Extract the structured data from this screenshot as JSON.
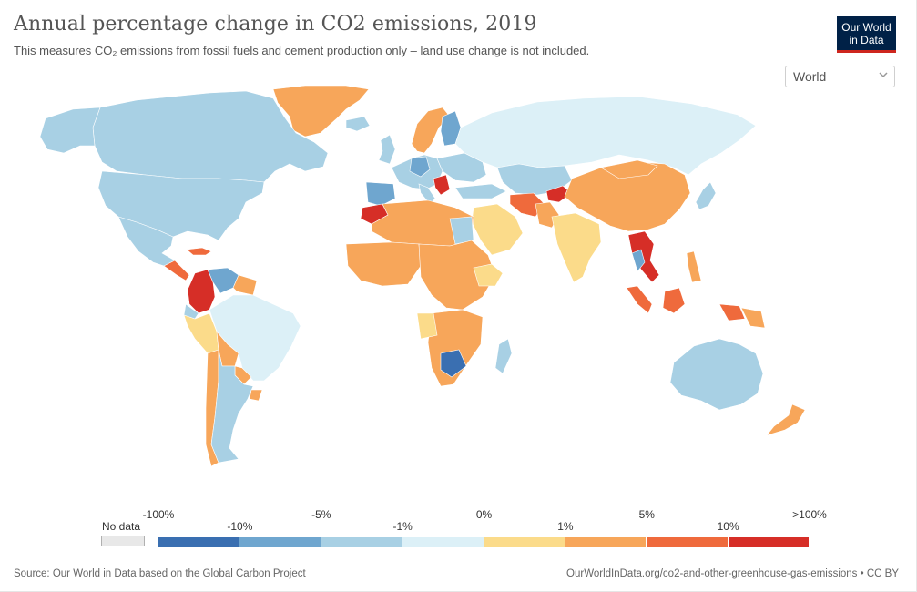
{
  "title": "Annual percentage change in CO2 emissions, 2019",
  "subtitle": "This measures CO₂ emissions from fossil fuels and cement production only – land use change is not included.",
  "logo": {
    "line1": "Our World",
    "line2": "in Data"
  },
  "region_selector": {
    "value": "World",
    "icon": "chevron-down-icon"
  },
  "legend": {
    "no_data_label": "No data",
    "top_ticks": [
      "-100%",
      "-5%",
      "0%",
      "5%",
      ">100%"
    ],
    "mid_ticks": [
      "-10%",
      "-1%",
      "1%",
      "10%"
    ],
    "bins": [
      {
        "range": "-100% to -10%",
        "color": "#3a6fb1"
      },
      {
        "range": "-10% to -5%",
        "color": "#6fa6cf"
      },
      {
        "range": "-5% to -1%",
        "color": "#a8d0e4"
      },
      {
        "range": "-1% to 0%",
        "color": "#dcf0f7"
      },
      {
        "range": "0% to 1%",
        "color": "#fbdb8a"
      },
      {
        "range": "1% to 5%",
        "color": "#f7a65a"
      },
      {
        "range": "5% to 10%",
        "color": "#ef6a3c"
      },
      {
        "range": "10% to >100%",
        "color": "#d62e27"
      }
    ],
    "no_data_color": "#e8e8e8"
  },
  "colors": {
    "decrease_large": "#3a6fb1",
    "decrease_mid": "#6fa6cf",
    "decrease_small": "#a8d0e4",
    "decrease_tiny": "#dcf0f7",
    "increase_tiny": "#fbdb8a",
    "increase_small": "#f7a65a",
    "increase_mid": "#ef6a3c",
    "increase_large": "#d62e27",
    "logo_bg": "#002147",
    "logo_accent": "#ce261e"
  },
  "footer": {
    "source": "Source: Our World in Data based on the Global Carbon Project",
    "url": "OurWorldInData.org/co2-and-other-greenhouse-gas-emissions • CC BY"
  }
}
